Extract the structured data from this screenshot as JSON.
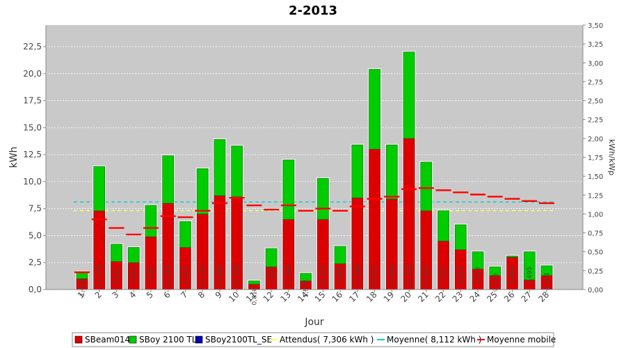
{
  "chart_data": {
    "type": "bar",
    "title": "2-2013",
    "xlabel": "Jour",
    "ylabel": "kWh",
    "ylabel_right": "kWh/kWp",
    "ylim": [
      0,
      24.5
    ],
    "ylim_right": [
      0,
      3.5
    ],
    "yticks": [
      "0,0",
      "2,5",
      "5,0",
      "7,5",
      "10,0",
      "12,5",
      "15,0",
      "17,5",
      "20,0",
      "22,5"
    ],
    "yticks_right": [
      "0,00",
      "0,25",
      "0,50",
      "0,75",
      "1,00",
      "1,25",
      "1,50",
      "1,75",
      "2,00",
      "2,25",
      "2,50",
      "2,75",
      "3,00",
      "3,25",
      "3,50"
    ],
    "categories": [
      "1",
      "2",
      "3",
      "4",
      "5",
      "6",
      "7",
      "8",
      "9",
      "10",
      "11",
      "12",
      "13",
      "14",
      "15",
      "16",
      "17",
      "18",
      "19",
      "20",
      "21",
      "22",
      "23",
      "24",
      "25",
      "26",
      "27",
      "28"
    ],
    "series": [
      {
        "name": "SBeam014",
        "color": "#dd0000",
        "values": [
          1.0,
          7.3,
          2.6,
          2.5,
          4.9,
          8.0,
          3.9,
          7.0,
          8.7,
          8.6,
          0.5,
          2.1,
          6.5,
          0.8,
          6.5,
          2.4,
          8.5,
          13.0,
          8.4,
          14.0,
          7.3,
          4.5,
          3.7,
          1.9,
          1.3,
          3.0,
          0.9,
          1.3
        ]
      },
      {
        "name": "SBoy 2100 TL",
        "color": "#00cc00",
        "values": [
          0.6,
          4.1,
          1.6,
          1.4,
          2.9,
          4.4,
          2.4,
          4.2,
          5.2,
          4.7,
          0.3,
          1.7,
          5.5,
          0.7,
          3.8,
          1.6,
          4.9,
          7.4,
          5.0,
          8.0,
          4.5,
          2.8,
          2.3,
          1.6,
          0.8,
          0.1,
          2.6,
          0.9
        ]
      },
      {
        "name": "SBoy2100TL_SE",
        "color": "#0000aa",
        "values": [
          0,
          0,
          0,
          0,
          0,
          0,
          0,
          0,
          0,
          0,
          0,
          0,
          0,
          0,
          0,
          0,
          0,
          0,
          0,
          0,
          0,
          0,
          0,
          0,
          0,
          0,
          0,
          0
        ]
      },
      {
        "name": "Attendus( 7,306 kWh )",
        "color": "#ffff66",
        "type": "hline",
        "value": 7.306
      },
      {
        "name": "Moyenne( 8,112 kWh )",
        "color": "#00cccc",
        "type": "hline",
        "value": 8.112
      },
      {
        "name": "Moyenne mobile",
        "color": "#ff0000",
        "type": "step",
        "values": [
          1.6,
          6.5,
          5.7,
          5.1,
          5.7,
          6.8,
          6.7,
          7.3,
          8.0,
          8.5,
          7.8,
          7.4,
          7.8,
          7.3,
          7.5,
          7.3,
          7.7,
          8.4,
          8.6,
          9.3,
          9.4,
          9.2,
          9.0,
          8.8,
          8.6,
          8.4,
          8.2,
          8.0
        ]
      }
    ],
    "value_labels": [
      "1,620",
      "11,376",
      "4,222",
      "3,918",
      "7,796",
      "12,414",
      "6,318",
      "11,192",
      "13,880",
      "13,338",
      "0,818",
      "3,807",
      "11,964",
      "1,532",
      "10,331",
      "3,988",
      "13,368",
      "20,415",
      "13,440",
      "21,936",
      "11,807",
      "7,301",
      "6,018",
      "3,512",
      "2,135",
      "3,060",
      "3,495",
      "2,241"
    ],
    "grid": true,
    "legend_position": "bottom"
  }
}
